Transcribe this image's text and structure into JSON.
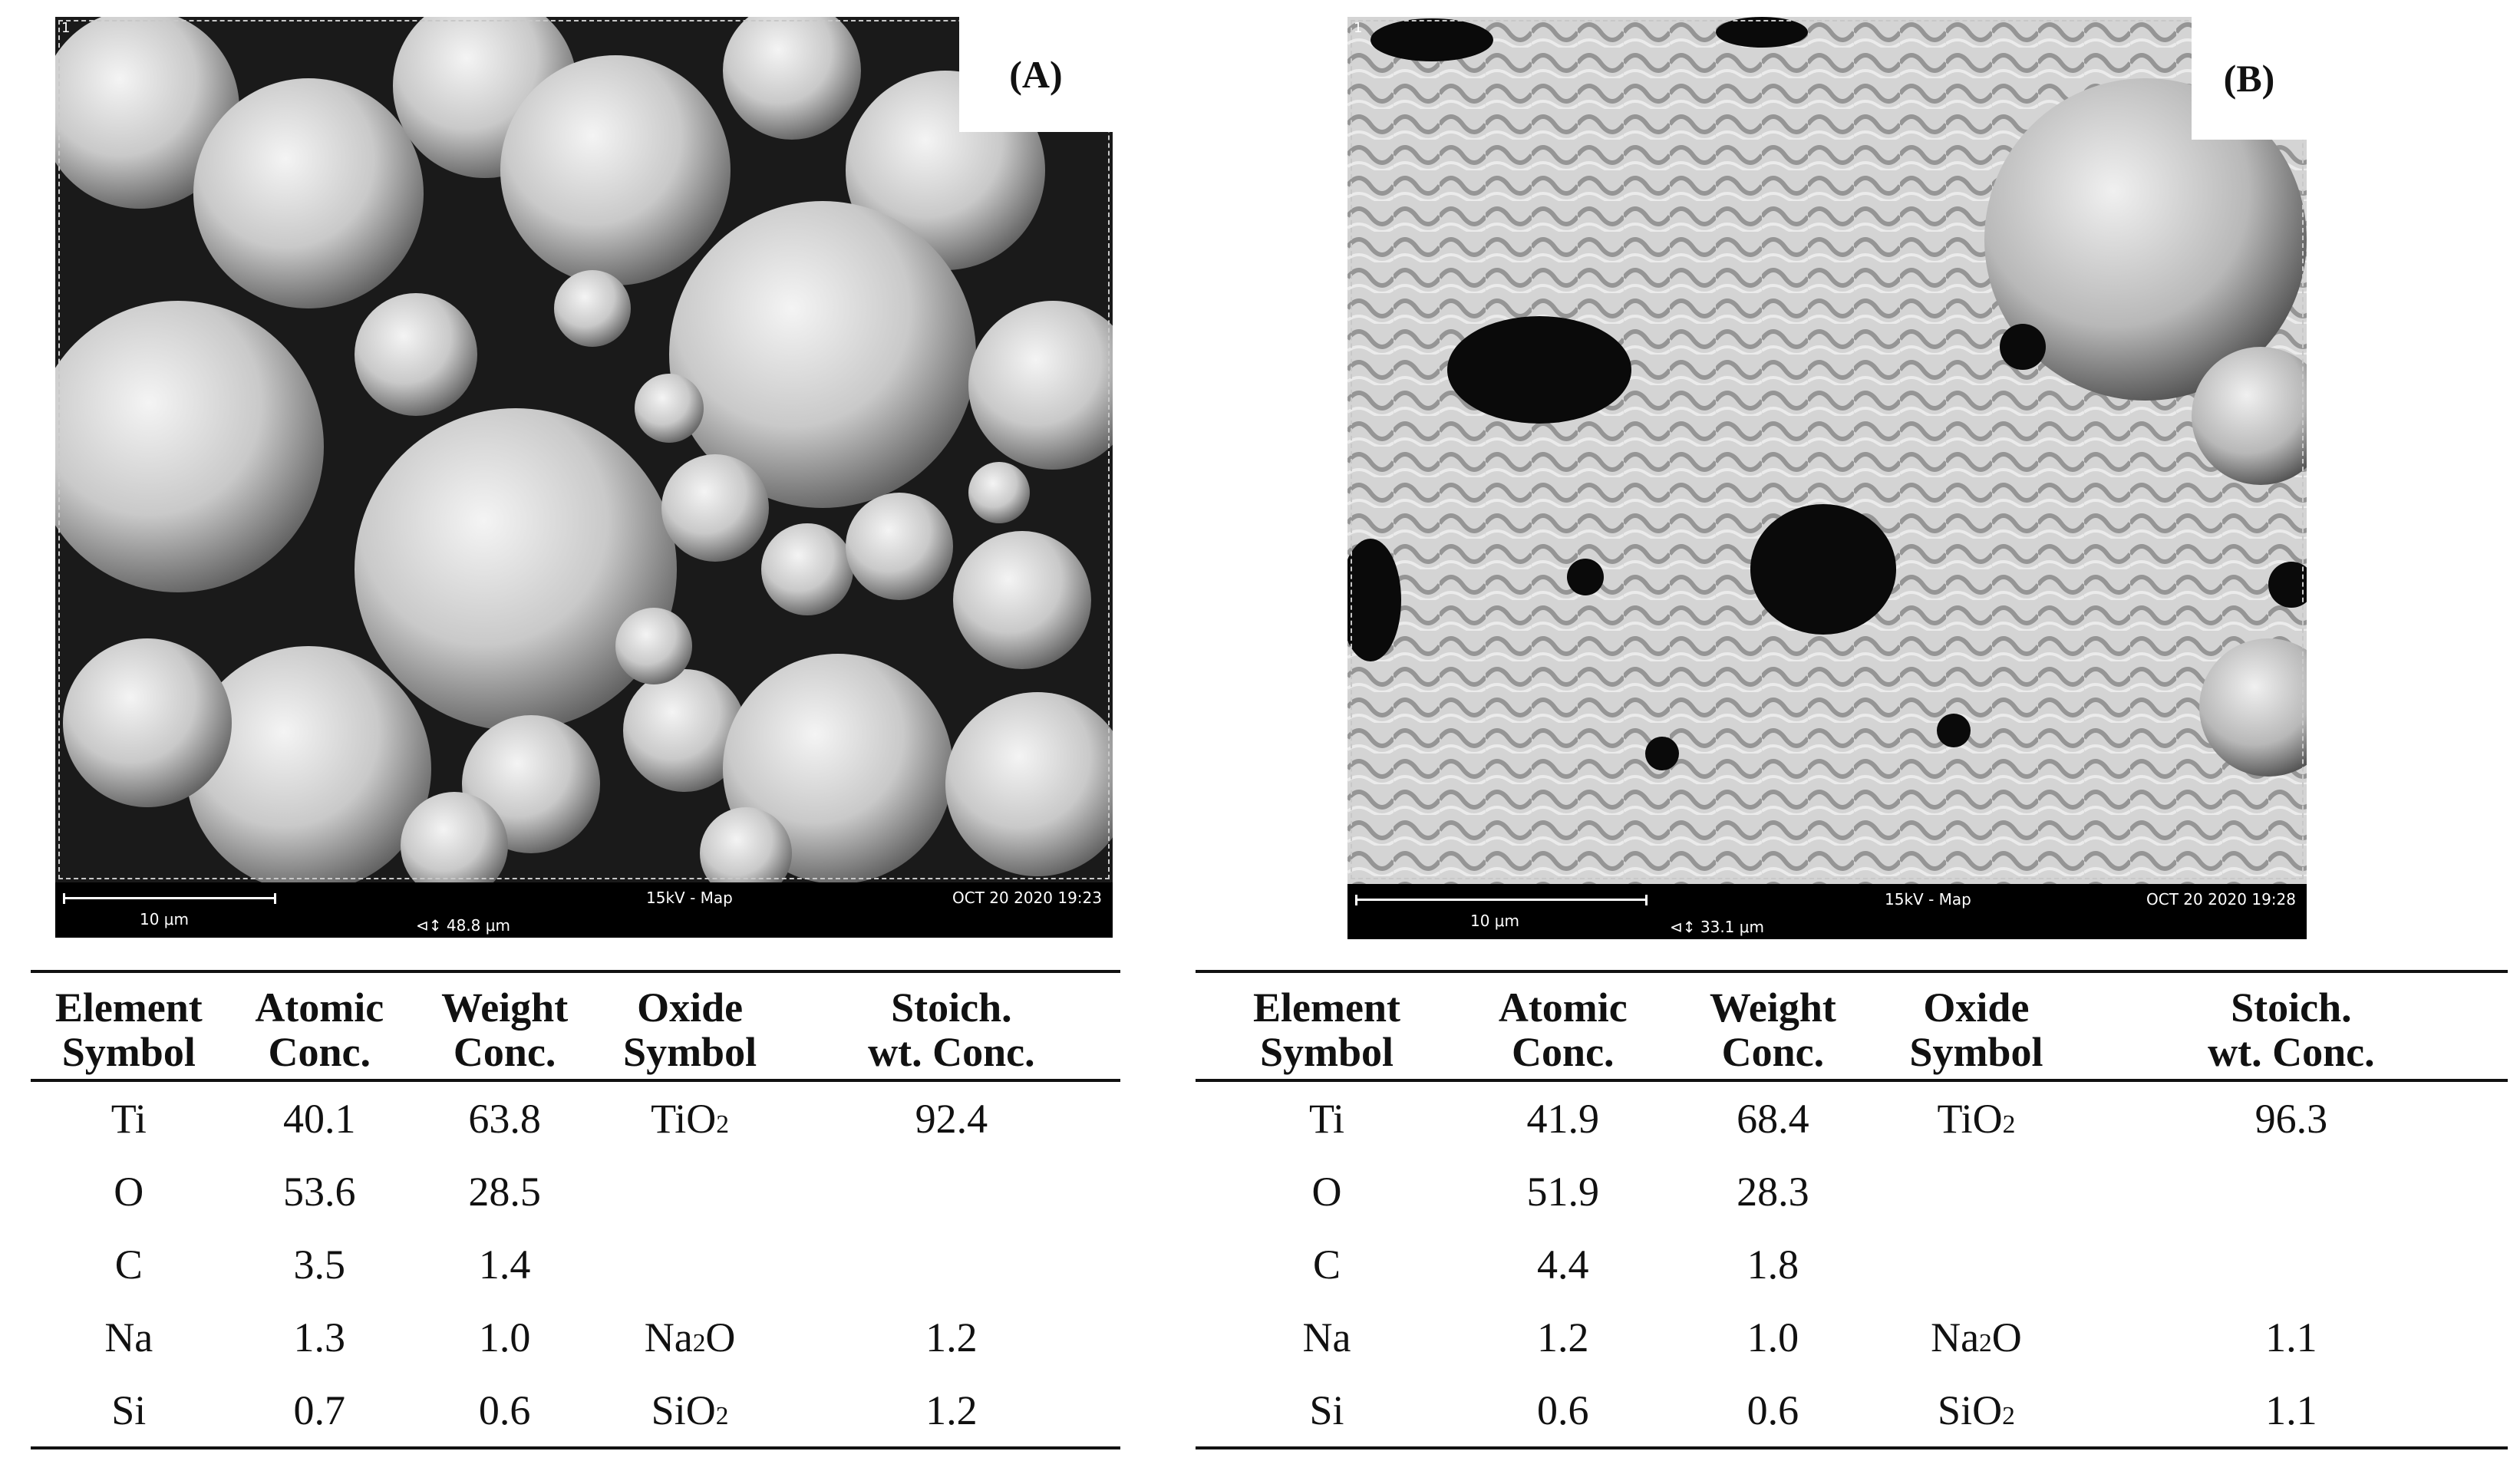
{
  "panels": [
    {
      "label": "(A)",
      "corner": "1",
      "scale_label": "10 μm",
      "fov": "48.8 μm",
      "kv": "15kV - Map",
      "date": "OCT 20 2020 19:23"
    },
    {
      "label": "(B)",
      "corner": "1",
      "scale_label": "10 μm",
      "fov": "33.1 μm",
      "kv": "15kV - Map",
      "date": "OCT 20 2020 19:28"
    }
  ],
  "table_headers": {
    "col1_l1": "Element",
    "col1_l2": "Symbol",
    "col2_l1": "Atomic",
    "col2_l2": "Conc.",
    "col3_l1": "Weight",
    "col3_l2": "Conc.",
    "col4_l1": "Oxide",
    "col4_l2": "Symbol",
    "col5_l1": "Stoich.",
    "col5_l2": "wt. Conc."
  },
  "oxides": {
    "ti": {
      "base": "TiO",
      "sub": "2"
    },
    "na": {
      "base": "Na",
      "sub": "2",
      "tail": "O"
    },
    "si": {
      "base": "SiO",
      "sub": "2"
    }
  },
  "table_a": [
    {
      "element": "Ti",
      "atomic": "40.1",
      "weight": "63.8",
      "stoich": "92.4"
    },
    {
      "element": "O",
      "atomic": "53.6",
      "weight": "28.5",
      "stoich": ""
    },
    {
      "element": "C",
      "atomic": "3.5",
      "weight": "1.4",
      "stoich": ""
    },
    {
      "element": "Na",
      "atomic": "1.3",
      "weight": "1.0",
      "stoich": "1.2"
    },
    {
      "element": "Si",
      "atomic": "0.7",
      "weight": "0.6",
      "stoich": "1.2"
    }
  ],
  "table_b": [
    {
      "element": "Ti",
      "atomic": "41.9",
      "weight": "68.4",
      "stoich": "96.3"
    },
    {
      "element": "O",
      "atomic": "51.9",
      "weight": "28.3",
      "stoich": ""
    },
    {
      "element": "C",
      "atomic": "4.4",
      "weight": "1.8",
      "stoich": ""
    },
    {
      "element": "Na",
      "atomic": "1.2",
      "weight": "1.0",
      "stoich": "1.1"
    },
    {
      "element": "Si",
      "atomic": "0.6",
      "weight": "0.6",
      "stoich": "1.1"
    }
  ]
}
